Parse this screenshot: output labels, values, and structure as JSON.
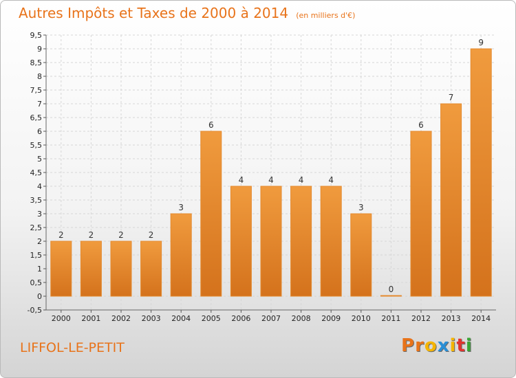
{
  "chart_data": {
    "type": "bar",
    "title": "Autres Impôts et Taxes de 2000 à 2014",
    "subtitle": "(en milliers d'€)",
    "categories": [
      "2000",
      "2001",
      "2002",
      "2003",
      "2004",
      "2005",
      "2006",
      "2007",
      "2008",
      "2009",
      "2010",
      "2011",
      "2012",
      "2013",
      "2014"
    ],
    "values": [
      2,
      2,
      2,
      2,
      3,
      6,
      4,
      4,
      4,
      4,
      3,
      0,
      6,
      7,
      9
    ],
    "value_labels": [
      "2",
      "2",
      "2",
      "2",
      "3",
      "6",
      "4",
      "4",
      "4",
      "4",
      "3",
      "0",
      "6",
      "7",
      "9"
    ],
    "ylim": [
      -0.5,
      9.5
    ],
    "y_ticks": [
      "-0,5",
      "0",
      "0,5",
      "1",
      "1,5",
      "2",
      "2,5",
      "3",
      "3,5",
      "4",
      "4,5",
      "5",
      "5,5",
      "6",
      "6,5",
      "7",
      "7,5",
      "8",
      "8,5",
      "9",
      "9,5"
    ],
    "y_tick_values": [
      -0.5,
      0,
      0.5,
      1,
      1.5,
      2,
      2.5,
      3,
      3.5,
      4,
      4.5,
      5,
      5.5,
      6,
      6.5,
      7,
      7.5,
      8,
      8.5,
      9,
      9.5
    ],
    "xlabel": "",
    "ylabel": "",
    "grid": true,
    "bar_color": "#f09b3e",
    "bar_color_dark": "#d4721c"
  },
  "footer": {
    "place": "LIFFOL-LE-PETIT",
    "logo_letters": [
      "P",
      "r",
      "o",
      "x",
      "i",
      "t",
      "i"
    ],
    "logo_colors": [
      "#e8731a",
      "#e8731a",
      "#f5b400",
      "#2a8fd6",
      "#f5b400",
      "#e0342f",
      "#3aa535"
    ]
  }
}
